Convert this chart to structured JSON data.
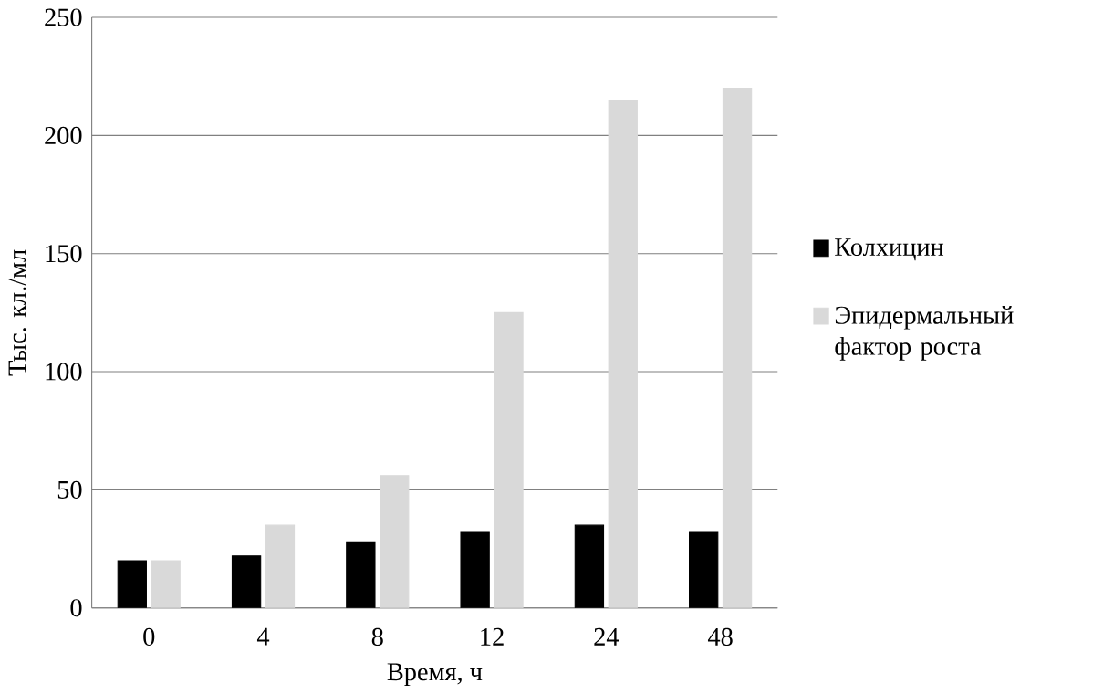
{
  "chart_data": {
    "type": "bar",
    "xlabel": "Время, ч",
    "ylabel": "Тыс. кл./мл",
    "categories": [
      "0",
      "4",
      "8",
      "12",
      "24",
      "48"
    ],
    "series": [
      {
        "name": "Колхицин",
        "color": "#000000",
        "values": [
          20,
          22,
          28,
          32,
          35,
          32
        ]
      },
      {
        "name": "Эпидермальный фактор роста",
        "color": "#d9d9d9",
        "values": [
          20,
          35,
          56,
          125,
          215,
          220
        ]
      }
    ],
    "ylim": [
      0,
      250
    ],
    "yticks": [
      0,
      50,
      100,
      150,
      200,
      250
    ],
    "grid": "y",
    "legend": "right"
  }
}
